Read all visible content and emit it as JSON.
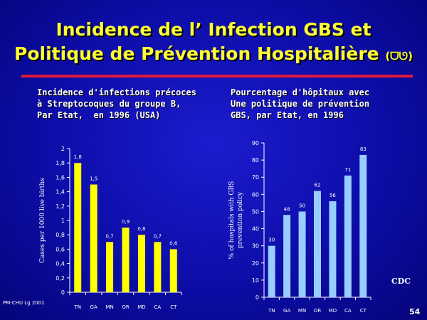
{
  "slide": {
    "title_line1": "Incidence de l’ Infection GBS et",
    "title_line2": "Politique de Prévention Hospitalière",
    "title_suffix": "(ᗜᘎ)",
    "footer_left": "PM-CHU Lg 2001",
    "source": "CDC",
    "page_number": "54"
  },
  "chart_data": [
    {
      "type": "bar",
      "title": "Incidence d'infections précoces\nà Streptocoques du groupe B,\nPar Etat,  en 1996 (USA)",
      "ylabel": "Cases per 1000 live births",
      "xlabel": "",
      "categories": [
        "TN",
        "GA",
        "MN",
        "OR",
        "MD",
        "CA",
        "CT"
      ],
      "values": [
        1.8,
        1.5,
        0.7,
        0.9,
        0.8,
        0.7,
        0.6
      ],
      "data_labels": [
        "1,8",
        "1,5",
        "0,7",
        "0,9",
        "0,8",
        "0,7",
        "0,6"
      ],
      "ylim": [
        0,
        2
      ],
      "yticks": [
        0,
        0.2,
        0.4,
        0.6,
        0.8,
        1,
        1.2,
        1.4,
        1.6,
        1.8,
        2
      ],
      "ytick_labels": [
        "0",
        "0,2",
        "0,4",
        "0,6",
        "0,8",
        "1",
        "1,2",
        "1,4",
        "1,6",
        "1,8",
        "2"
      ],
      "bar_color": "#ffff00",
      "grid": false
    },
    {
      "type": "bar",
      "title": "Pourcentage d'hôpitaux avec\nUne politique de prévention\nGBS, par Etat, en 1996",
      "ylabel": "% of hospitals with GBS prevention policy",
      "xlabel": "",
      "categories": [
        "TN",
        "GA",
        "MN",
        "OR",
        "MD",
        "CA",
        "CT"
      ],
      "values": [
        30,
        48,
        50,
        62,
        56,
        71,
        83
      ],
      "data_labels": [
        "30",
        "48",
        "50",
        "62",
        "56",
        "71",
        "83"
      ],
      "ylim": [
        0,
        90
      ],
      "yticks": [
        0,
        10,
        20,
        30,
        40,
        50,
        60,
        70,
        80,
        90
      ],
      "ytick_labels": [
        "0",
        "10",
        "20",
        "30",
        "40",
        "50",
        "60",
        "70",
        "80",
        "90"
      ],
      "bar_color": "#99ccff",
      "grid": false
    }
  ]
}
